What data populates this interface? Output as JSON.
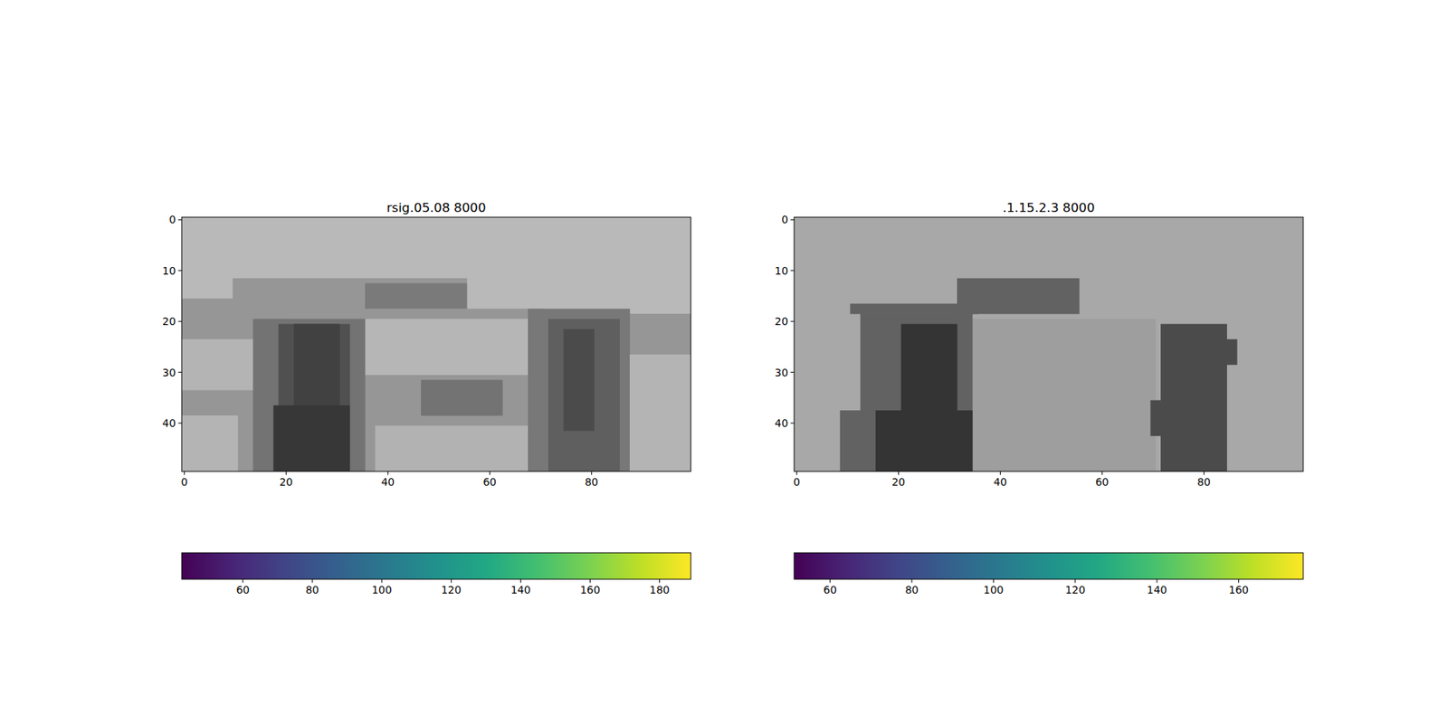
{
  "chart_data": [
    {
      "type": "heatmap",
      "title": "rsig.05.08 8000",
      "xlim": [
        -0.5,
        99.5
      ],
      "ylim": [
        49.5,
        -0.5
      ],
      "xticks": [
        0,
        20,
        40,
        60,
        80
      ],
      "yticks": [
        0,
        10,
        20,
        30,
        40
      ],
      "regions": [
        {
          "x": [
            0,
            99
          ],
          "y": [
            0,
            49
          ],
          "value": 185
        },
        {
          "x": [
            10,
            55
          ],
          "y": [
            12,
            18
          ],
          "value": 150
        },
        {
          "x": [
            36,
            55
          ],
          "y": [
            13,
            18
          ],
          "value": 122
        },
        {
          "x": [
            0,
            20
          ],
          "y": [
            16,
            23
          ],
          "value": 150
        },
        {
          "x": [
            0,
            40
          ],
          "y": [
            19,
            49
          ],
          "value": 150
        },
        {
          "x": [
            0,
            17
          ],
          "y": [
            24,
            33
          ],
          "value": 180
        },
        {
          "x": [
            0,
            10
          ],
          "y": [
            39,
            49
          ],
          "value": 180
        },
        {
          "x": [
            35,
            70
          ],
          "y": [
            18,
            49
          ],
          "value": 150
        },
        {
          "x": [
            36,
            68
          ],
          "y": [
            20,
            30
          ],
          "value": 182
        },
        {
          "x": [
            38,
            68
          ],
          "y": [
            41,
            49
          ],
          "value": 178
        },
        {
          "x": [
            47,
            62
          ],
          "y": [
            32,
            38
          ],
          "value": 115
        },
        {
          "x": [
            14,
            35
          ],
          "y": [
            20,
            49
          ],
          "value": 115
        },
        {
          "x": [
            19,
            32
          ],
          "y": [
            21,
            49
          ],
          "value": 80
        },
        {
          "x": [
            22,
            30
          ],
          "y": [
            21,
            37
          ],
          "value": 65
        },
        {
          "x": [
            18,
            32
          ],
          "y": [
            37,
            49
          ],
          "value": 55
        },
        {
          "x": [
            86,
            99
          ],
          "y": [
            19,
            26
          ],
          "value": 150
        },
        {
          "x": [
            68,
            87
          ],
          "y": [
            18,
            49
          ],
          "value": 120
        },
        {
          "x": [
            72,
            85
          ],
          "y": [
            20,
            49
          ],
          "value": 95
        },
        {
          "x": [
            75,
            80
          ],
          "y": [
            22,
            41
          ],
          "value": 75
        },
        {
          "x": [
            88,
            99
          ],
          "y": [
            27,
            49
          ],
          "value": 180
        }
      ],
      "colorbar": {
        "lim": [
          42.4,
          189
        ],
        "ticks": [
          60,
          80,
          100,
          120,
          140,
          160,
          180
        ]
      }
    },
    {
      "type": "heatmap",
      "title": ".1.15.2.3 8000",
      "xlim": [
        -0.5,
        99.5
      ],
      "ylim": [
        49.5,
        -0.5
      ],
      "xticks": [
        0,
        20,
        40,
        60,
        80
      ],
      "yticks": [
        0,
        10,
        20,
        30,
        40
      ],
      "regions": [
        {
          "x": [
            0,
            99
          ],
          "y": [
            0,
            49
          ],
          "value": 168
        },
        {
          "x": [
            34,
            70
          ],
          "y": [
            20,
            49
          ],
          "value": 158
        },
        {
          "x": [
            32,
            55
          ],
          "y": [
            12,
            18
          ],
          "value": 98
        },
        {
          "x": [
            11,
            35
          ],
          "y": [
            17,
            18
          ],
          "value": 98
        },
        {
          "x": [
            13,
            34
          ],
          "y": [
            19,
            49
          ],
          "value": 98
        },
        {
          "x": [
            9,
            16
          ],
          "y": [
            38,
            49
          ],
          "value": 98
        },
        {
          "x": [
            21,
            31
          ],
          "y": [
            21,
            37
          ],
          "value": 52
        },
        {
          "x": [
            16,
            34
          ],
          "y": [
            38,
            49
          ],
          "value": 52
        },
        {
          "x": [
            72,
            84
          ],
          "y": [
            21,
            49
          ],
          "value": 75
        },
        {
          "x": [
            70,
            72
          ],
          "y": [
            36,
            42
          ],
          "value": 75
        },
        {
          "x": [
            84,
            86
          ],
          "y": [
            24,
            28
          ],
          "value": 75
        }
      ],
      "colorbar": {
        "lim": [
          51.2,
          175.8
        ],
        "ticks": [
          60,
          80,
          100,
          120,
          140,
          160
        ]
      }
    }
  ]
}
